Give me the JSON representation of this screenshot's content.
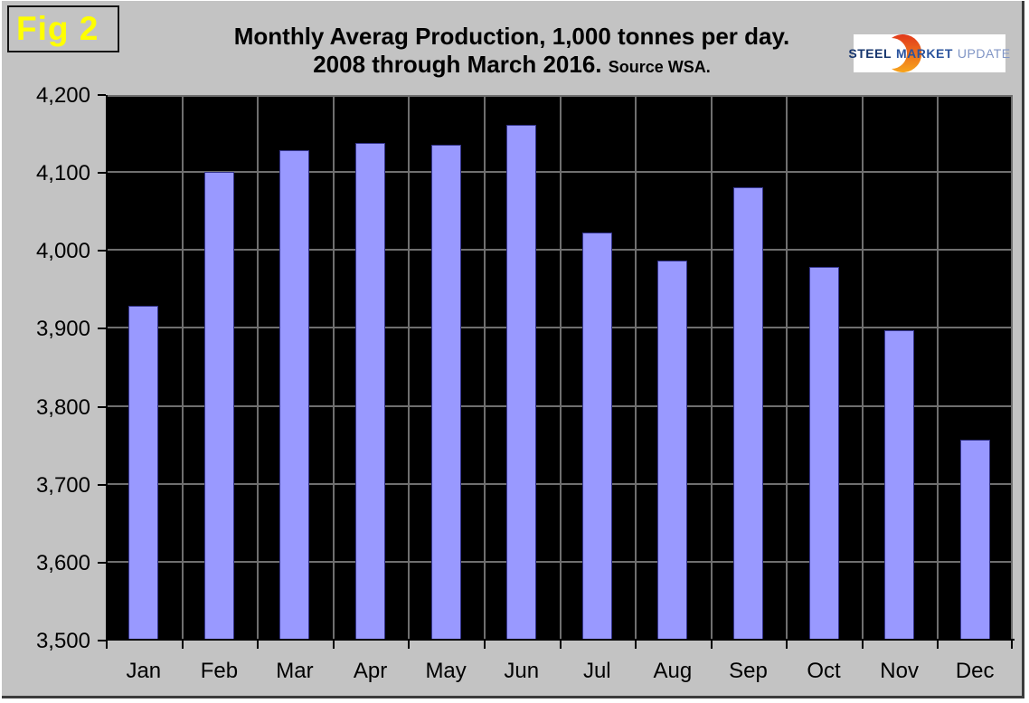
{
  "figure": {
    "label": "Fig 2"
  },
  "title": {
    "line1": "Monthly Averag Production, 1,000 tonnes per day.",
    "line2": "2008 through March 2016.",
    "source": "Source WSA."
  },
  "logo": {
    "word1": "STEEL",
    "word2": "MARKET",
    "word3": "UPDATE"
  },
  "chart_data": {
    "type": "bar",
    "title": "Monthly Averag Production, 1,000 tonnes per day. 2008 through March 2016. Source WSA.",
    "categories": [
      "Jan",
      "Feb",
      "Mar",
      "Apr",
      "May",
      "Jun",
      "Jul",
      "Aug",
      "Sep",
      "Oct",
      "Nov",
      "Dec"
    ],
    "values": [
      3930,
      4101,
      4129,
      4139,
      4136,
      4162,
      4024,
      3987,
      4082,
      3980,
      3898,
      3758
    ],
    "series_name": "Monthly average production (1,000 tonnes per day)",
    "xlabel": "",
    "ylabel": "",
    "ylim": [
      3500,
      4200
    ],
    "ytick_step": 100,
    "grid": true,
    "legend": false,
    "colors": {
      "bar_fill": "#9999ff",
      "bar_border": "#34348c",
      "plot_background": "#000000",
      "gridline": "#6f6f6f",
      "page_background": "#c3c3c3",
      "fig_label_text": "#ffff00",
      "logo_orange_top": "#e2391b",
      "logo_orange_bottom": "#f7a51d"
    }
  }
}
